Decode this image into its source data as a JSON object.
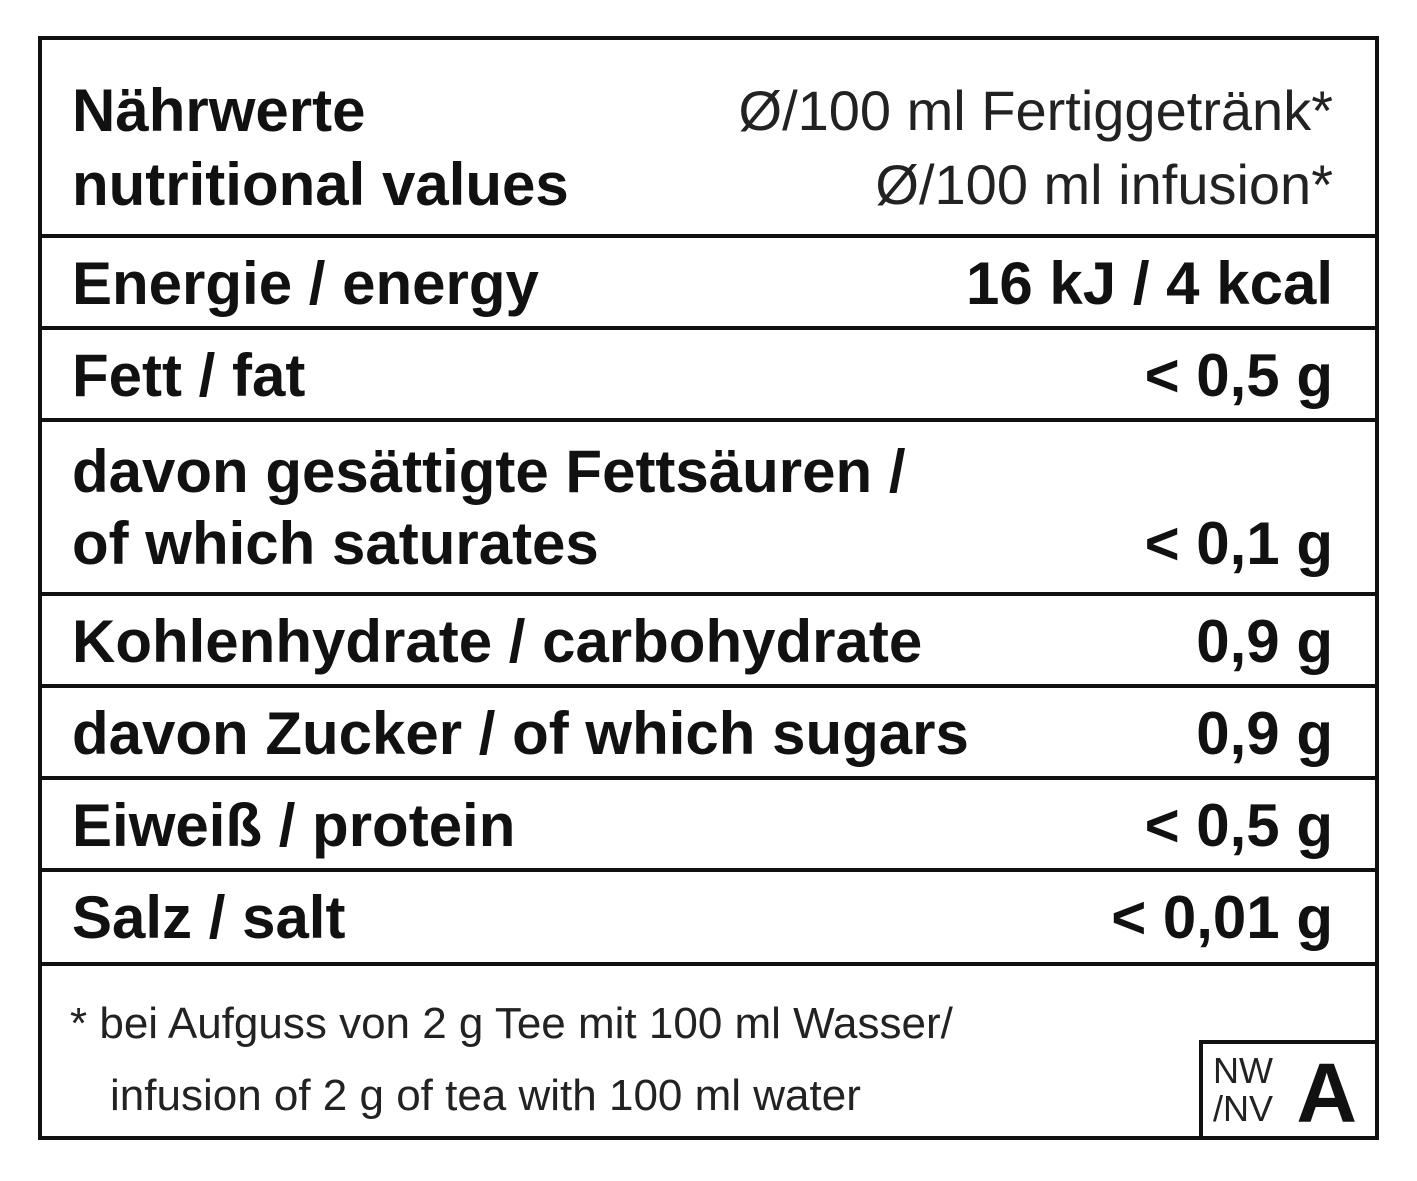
{
  "header": {
    "title_de": "Nährwerte",
    "title_en": "nutritional values",
    "basis_de": "Ø/100 ml Fertiggetränk*",
    "basis_en": "Ø/100 ml infusion*"
  },
  "rows": [
    {
      "label": "Energie / energy",
      "value": "16 kJ / 4 kcal"
    },
    {
      "label": "Fett / fat",
      "value": "< 0,5 g"
    },
    {
      "label_line1": "davon gesättigte Fettsäuren /",
      "label_line2": "of which saturates",
      "value": "< 0,1 g"
    },
    {
      "label": "Kohlenhydrate / carbohydrate",
      "value": "0,9 g"
    },
    {
      "label": "davon Zucker / of which sugars",
      "value": "0,9 g"
    },
    {
      "label": "Eiweiß / protein",
      "value": "< 0,5 g"
    },
    {
      "label": "Salz / salt",
      "value": "< 0,01 g"
    }
  ],
  "footnote": {
    "line1": "* bei Aufguss von 2 g Tee mit 100 ml Wasser/",
    "line2": "infusion of 2 g of tea with 100 ml water"
  },
  "badge": {
    "line1": "NW",
    "line2": "/NV",
    "letter": "A"
  }
}
